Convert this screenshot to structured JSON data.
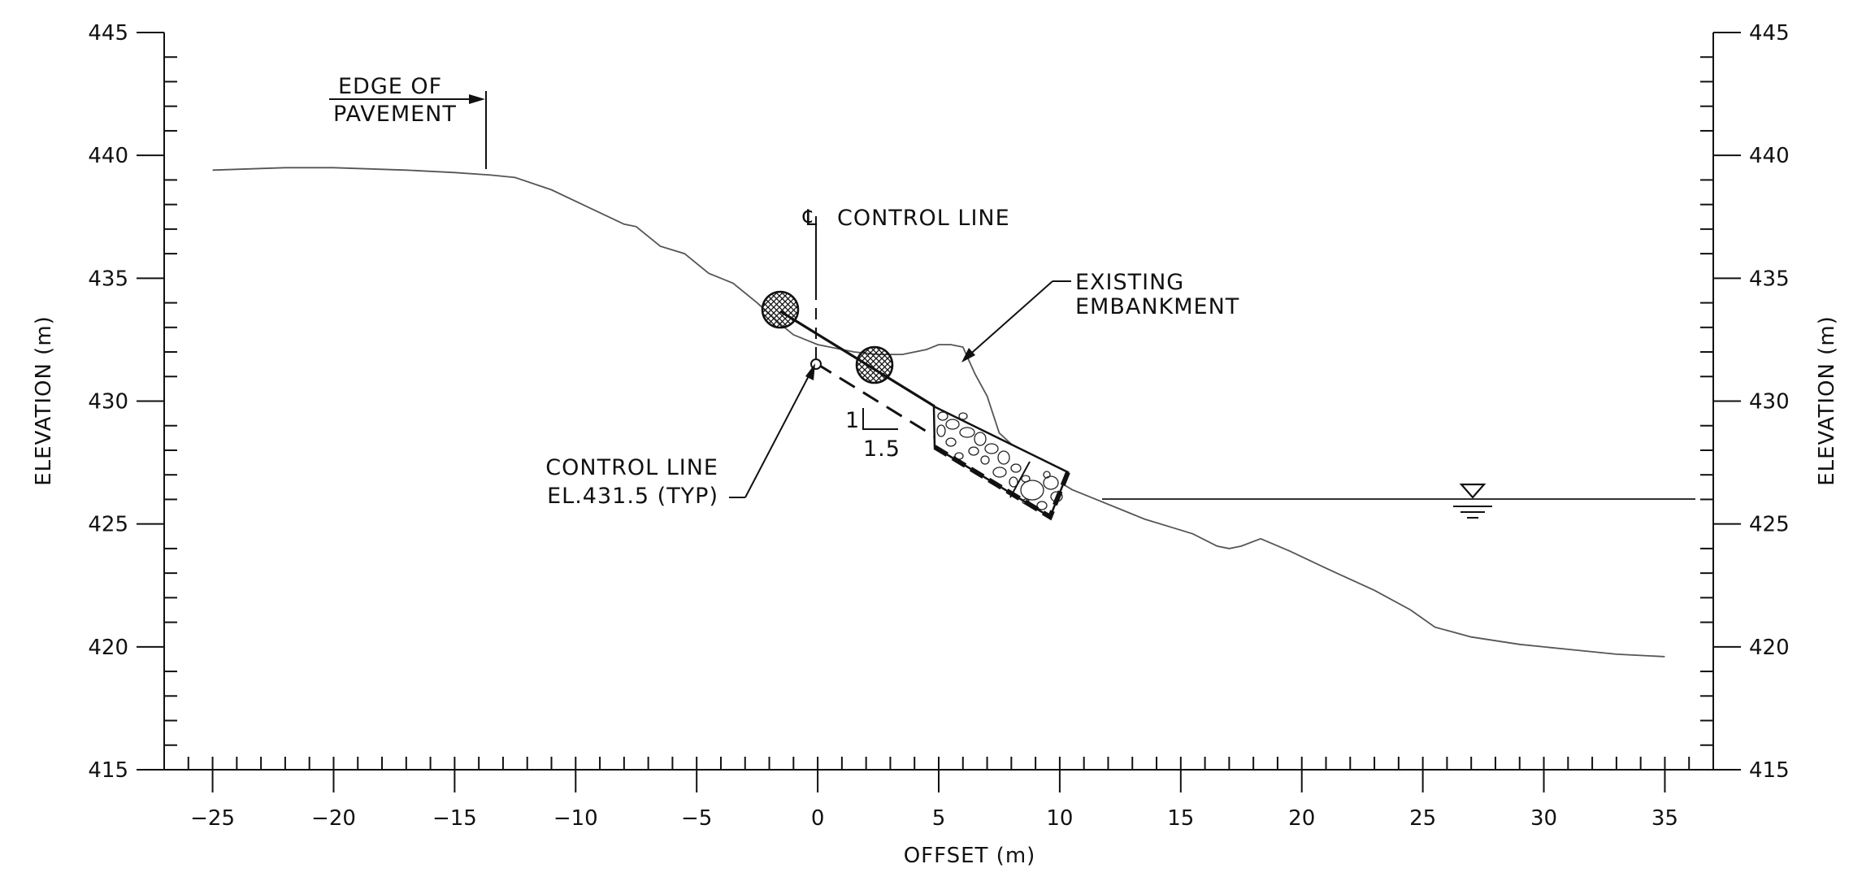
{
  "chart_data": {
    "type": "line",
    "xlabel": "OFFSET (m)",
    "ylabel": "ELEVATION (m)",
    "xlim": [
      -27,
      37
    ],
    "ylim": [
      415,
      445
    ],
    "x_ticks": [
      -25,
      -20,
      -15,
      -10,
      -5,
      0,
      5,
      10,
      15,
      20,
      25,
      30,
      35
    ],
    "y_ticks": [
      415,
      420,
      425,
      430,
      435,
      440,
      445
    ],
    "series": [
      {
        "name": "",
        "x": [
          -25,
          -22,
          -20,
          -17,
          -15,
          -13.5,
          -12.5,
          -11,
          -9.5,
          -8,
          -7.5,
          -6.5,
          -5.5,
          -4.5,
          -3.5,
          -2.5,
          -1.5,
          -1,
          0,
          1,
          1.5,
          2.5,
          3.5,
          4.5,
          5,
          5.5,
          6,
          6.5,
          7,
          7.5,
          8.5,
          9.5,
          10.5,
          11.5,
          12.5,
          13.5,
          14.5,
          15.5,
          16.5,
          17,
          17.5,
          18.3,
          19.5,
          21,
          23,
          24.5,
          25.5,
          27,
          29,
          31,
          33,
          35
        ],
        "y": [
          439.4,
          439.5,
          439.5,
          439.4,
          439.3,
          439.2,
          439.1,
          438.6,
          437.9,
          437.2,
          437.1,
          436.3,
          436.0,
          435.2,
          434.8,
          434.0,
          433.1,
          432.7,
          432.3,
          432.1,
          432.0,
          431.9,
          431.9,
          432.1,
          432.3,
          432.3,
          432.2,
          431.1,
          430.2,
          428.7,
          427.8,
          427.0,
          426.4,
          426.0,
          425.6,
          425.2,
          424.9,
          424.6,
          424.1,
          424.0,
          424.1,
          424.4,
          423.9,
          423.2,
          422.3,
          421.5,
          420.8,
          420.4,
          420.1,
          419.9,
          419.7,
          419.6
        ]
      }
    ],
    "annotations": {
      "pavement": [
        "EDGE OF",
        "PAVEMENT"
      ],
      "control_line_title": "CONTROL LINE",
      "control_line_note": [
        "CONTROL LINE",
        "EL.431.5 (TYP)"
      ],
      "embankment": [
        "EXISTING",
        "EMBANKMENT"
      ],
      "slope_rise": "1",
      "slope_run": "1.5"
    },
    "control_line": {
      "x": 0,
      "elevation": 431.5
    },
    "water_level": 426,
    "pavement_edge_x": -13.5,
    "slope_ratio": [
      1,
      1.5
    ],
    "grid": false
  }
}
